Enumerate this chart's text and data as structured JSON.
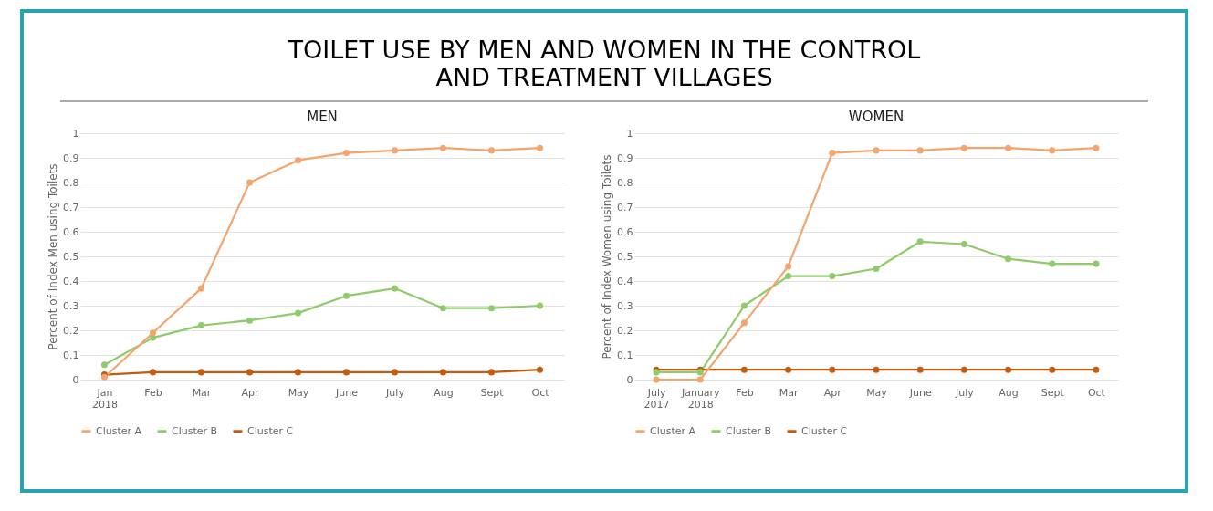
{
  "chart_data": [
    {
      "type": "line",
      "title": "TOILET USE BY MEN AND WOMEN IN THE CONTROL AND TREATMENT VILLAGES",
      "subtitle": "MEN",
      "ylabel": "Percent of Index Men using Toilets",
      "categories": [
        "Jan 2018",
        "Feb",
        "Mar",
        "Apr",
        "May",
        "June",
        "July",
        "Aug",
        "Sept",
        "Oct"
      ],
      "series": [
        {
          "name": "Cluster A",
          "color": "#f4a46c",
          "values": [
            0.01,
            0.19,
            0.37,
            0.8,
            0.89,
            0.92,
            0.93,
            0.94,
            0.93,
            0.94
          ]
        },
        {
          "name": "Cluster B",
          "color": "#8fcb6a",
          "values": [
            0.06,
            0.17,
            0.22,
            0.24,
            0.27,
            0.34,
            0.37,
            0.29,
            0.29,
            0.3
          ]
        },
        {
          "name": "Cluster C",
          "color": "#c55a11",
          "values": [
            0.02,
            0.03,
            0.03,
            0.03,
            0.03,
            0.03,
            0.03,
            0.03,
            0.03,
            0.04
          ]
        }
      ],
      "ylim": [
        0,
        1
      ],
      "yticks": [
        0,
        0.1,
        0.2,
        0.3,
        0.4,
        0.5,
        0.6,
        0.7,
        0.8,
        0.9,
        1
      ],
      "grid": "y",
      "legend": "bottom",
      "marker": "circle"
    },
    {
      "type": "line",
      "subtitle": "WOMEN",
      "ylabel": "Percent of Index Women using Toilets",
      "categories": [
        "July 2017",
        "January 2018",
        "Feb",
        "Mar",
        "Apr",
        "May",
        "June",
        "July",
        "Aug",
        "Sept",
        "Oct"
      ],
      "series": [
        {
          "name": "Cluster A",
          "color": "#f4a46c",
          "values": [
            0.0,
            0.0,
            0.23,
            0.46,
            0.92,
            0.93,
            0.93,
            0.94,
            0.94,
            0.93,
            0.94
          ]
        },
        {
          "name": "Cluster B",
          "color": "#8fcb6a",
          "values": [
            0.03,
            0.03,
            0.3,
            0.42,
            0.42,
            0.45,
            0.56,
            0.55,
            0.49,
            0.47,
            0.47
          ]
        },
        {
          "name": "Cluster C",
          "color": "#c55a11",
          "values": [
            0.04,
            0.04,
            0.04,
            0.04,
            0.04,
            0.04,
            0.04,
            0.04,
            0.04,
            0.04,
            0.04
          ]
        }
      ],
      "ylim": [
        0,
        1
      ],
      "yticks": [
        0,
        0.1,
        0.2,
        0.3,
        0.4,
        0.5,
        0.6,
        0.7,
        0.8,
        0.9,
        1
      ],
      "grid": "y",
      "legend": "bottom",
      "marker": "circle"
    }
  ]
}
